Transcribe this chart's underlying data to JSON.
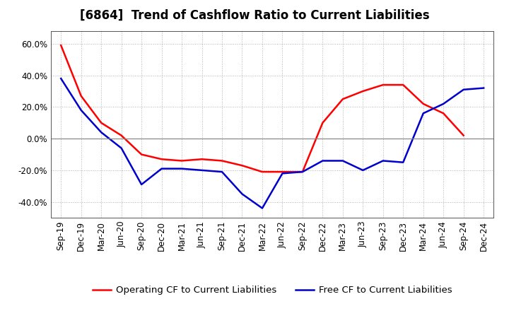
{
  "title": "[6864]  Trend of Cashflow Ratio to Current Liabilities",
  "x_labels": [
    "Sep-19",
    "Dec-19",
    "Mar-20",
    "Jun-20",
    "Sep-20",
    "Dec-20",
    "Mar-21",
    "Jun-21",
    "Sep-21",
    "Dec-21",
    "Mar-22",
    "Jun-22",
    "Sep-22",
    "Dec-22",
    "Mar-23",
    "Jun-23",
    "Sep-23",
    "Dec-23",
    "Mar-24",
    "Jun-24",
    "Sep-24",
    "Dec-24"
  ],
  "operating_cf": [
    0.59,
    0.27,
    0.1,
    0.02,
    -0.1,
    -0.13,
    -0.14,
    -0.13,
    -0.14,
    -0.17,
    -0.21,
    -0.21,
    -0.21,
    0.1,
    0.25,
    0.3,
    0.34,
    0.34,
    0.22,
    0.16,
    0.02,
    null
  ],
  "free_cf": [
    0.38,
    0.18,
    0.04,
    -0.06,
    -0.29,
    -0.19,
    -0.19,
    -0.2,
    -0.21,
    -0.35,
    -0.44,
    -0.22,
    -0.21,
    -0.14,
    -0.14,
    -0.2,
    -0.14,
    -0.15,
    0.16,
    0.22,
    0.31,
    0.32
  ],
  "operating_color": "#FF0000",
  "free_color": "#0000CC",
  "ylim": [
    -0.5,
    0.68
  ],
  "yticks": [
    -0.4,
    -0.2,
    0.0,
    0.2,
    0.4,
    0.6
  ],
  "background_color": "#FFFFFF",
  "grid_color": "#AAAAAA",
  "legend_operating": "Operating CF to Current Liabilities",
  "legend_free": "Free CF to Current Liabilities",
  "title_fontsize": 12,
  "axis_fontsize": 8.5,
  "legend_fontsize": 9.5,
  "linewidth": 1.8,
  "zero_line_color": "#888888",
  "spine_color": "#555555"
}
